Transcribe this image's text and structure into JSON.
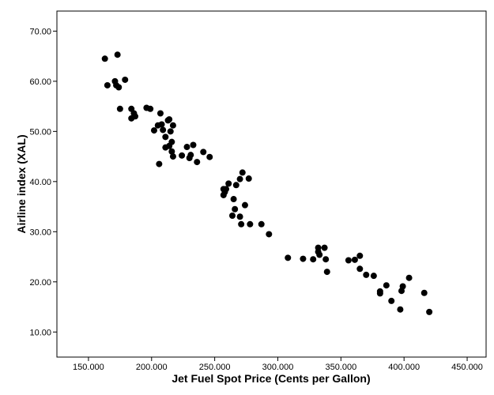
{
  "colors": {
    "background": "#ffffff",
    "frame": "#000000",
    "point": "#000000",
    "text": "#000000"
  },
  "chart_data": {
    "type": "scatter",
    "title": "",
    "xlabel": "Jet Fuel Spot Price (Cents per Gallon)",
    "ylabel": "Airline index (XAL)",
    "xlim": [
      125000,
      465000
    ],
    "ylim": [
      5,
      74
    ],
    "grid": false,
    "legend": "none",
    "x_ticks": [
      150000,
      200000,
      250000,
      300000,
      350000,
      400000,
      450000
    ],
    "x_tick_labels": [
      "150.000",
      "200.000",
      "250.000",
      "300.000",
      "350.000",
      "400.000",
      "450.000"
    ],
    "y_ticks": [
      10,
      20,
      30,
      40,
      50,
      60,
      70
    ],
    "y_tick_labels": [
      "10.00",
      "20.00",
      "30.00",
      "40.00",
      "50.00",
      "60.00",
      "70.00"
    ],
    "points": [
      [
        163000,
        64.5
      ],
      [
        173000,
        65.3
      ],
      [
        165000,
        59.2
      ],
      [
        171000,
        60.0
      ],
      [
        172000,
        59.2
      ],
      [
        174000,
        58.8
      ],
      [
        179000,
        60.3
      ],
      [
        175000,
        54.5
      ],
      [
        184000,
        54.5
      ],
      [
        186000,
        53.6
      ],
      [
        187000,
        53.0
      ],
      [
        184000,
        52.6
      ],
      [
        196000,
        54.7
      ],
      [
        199000,
        54.5
      ],
      [
        202000,
        50.2
      ],
      [
        205000,
        51.2
      ],
      [
        208000,
        51.4
      ],
      [
        207000,
        53.6
      ],
      [
        209000,
        50.3
      ],
      [
        211000,
        48.9
      ],
      [
        213000,
        52.2
      ],
      [
        214000,
        52.4
      ],
      [
        215000,
        50.0
      ],
      [
        217000,
        51.2
      ],
      [
        216000,
        47.9
      ],
      [
        214000,
        47.1
      ],
      [
        211000,
        46.8
      ],
      [
        216000,
        46.0
      ],
      [
        217000,
        45.0
      ],
      [
        206000,
        43.5
      ],
      [
        224000,
        45.2
      ],
      [
        228000,
        46.9
      ],
      [
        231000,
        45.3
      ],
      [
        230000,
        44.7
      ],
      [
        233000,
        47.3
      ],
      [
        236000,
        43.9
      ],
      [
        241000,
        45.9
      ],
      [
        246000,
        44.9
      ],
      [
        257000,
        38.5
      ],
      [
        258000,
        37.9
      ],
      [
        257000,
        37.3
      ],
      [
        259000,
        38.5
      ],
      [
        261000,
        39.6
      ],
      [
        265000,
        36.5
      ],
      [
        267000,
        39.3
      ],
      [
        270000,
        40.5
      ],
      [
        272000,
        41.8
      ],
      [
        277000,
        40.6
      ],
      [
        266000,
        34.5
      ],
      [
        264000,
        33.2
      ],
      [
        270000,
        33.0
      ],
      [
        274000,
        35.3
      ],
      [
        271000,
        31.5
      ],
      [
        278000,
        31.5
      ],
      [
        287000,
        31.5
      ],
      [
        293000,
        29.5
      ],
      [
        308000,
        24.8
      ],
      [
        320000,
        24.6
      ],
      [
        328000,
        24.5
      ],
      [
        332000,
        26.8
      ],
      [
        332000,
        26.0
      ],
      [
        333000,
        25.4
      ],
      [
        337000,
        26.8
      ],
      [
        338000,
        24.5
      ],
      [
        339000,
        22.0
      ],
      [
        356000,
        24.3
      ],
      [
        361000,
        24.4
      ],
      [
        365000,
        25.2
      ],
      [
        365000,
        22.6
      ],
      [
        370000,
        21.4
      ],
      [
        376000,
        21.2
      ],
      [
        381000,
        18.1
      ],
      [
        381000,
        17.7
      ],
      [
        386000,
        19.3
      ],
      [
        390000,
        16.2
      ],
      [
        398000,
        18.2
      ],
      [
        399000,
        19.1
      ],
      [
        404000,
        20.8
      ],
      [
        397000,
        14.5
      ],
      [
        416000,
        17.8
      ],
      [
        420000,
        14.0
      ]
    ]
  }
}
